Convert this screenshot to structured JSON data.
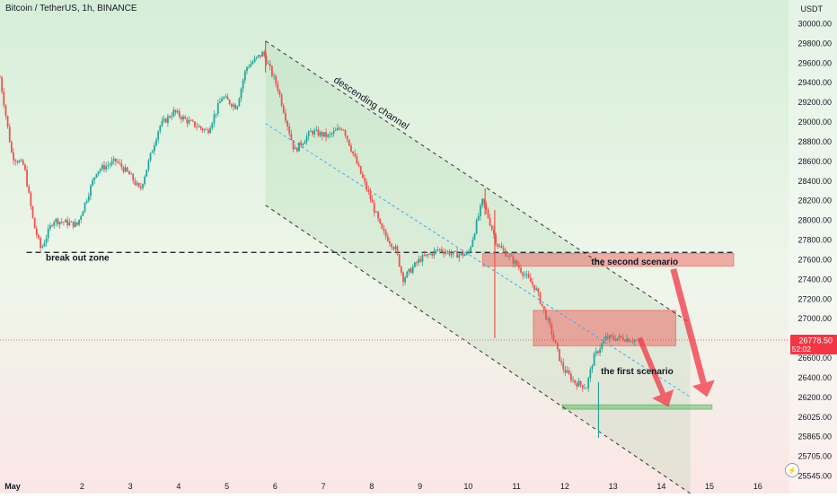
{
  "header": {
    "symbol": "Bitcoin / TetherUS, 1h, BINANCE",
    "unit": "USDT"
  },
  "chart_data": {
    "type": "candlestick",
    "y_axis": {
      "range": [
        25545,
        30050
      ],
      "ticks": [
        30000,
        29800,
        29600,
        29400,
        29200,
        29000,
        28800,
        28600,
        28400,
        28200,
        28000,
        27800,
        27600,
        27400,
        27200,
        27000,
        26800,
        26600,
        26400,
        26200,
        26025,
        25865,
        25705,
        25545
      ],
      "tick_labels": [
        "30000.00",
        "29800.00",
        "29600.00",
        "29400.00",
        "29200.00",
        "29000.00",
        "28800.00",
        "28600.00",
        "28400.00",
        "28200.00",
        "28000.00",
        "27800.00",
        "27600.00",
        "27400.00",
        "27200.00",
        "27000.00",
        "26800.00",
        "26600.00",
        "26400.00",
        "26200.00",
        "26025.00",
        "25865.00",
        "25705.00",
        "25545.00"
      ]
    },
    "x_axis": {
      "range": [
        0.3,
        16.45
      ],
      "ticks": [
        1,
        2,
        3,
        4,
        5,
        6,
        7,
        8,
        9,
        10,
        11,
        12,
        13,
        14,
        15,
        16
      ],
      "tick_labels": [
        "May",
        "2",
        "3",
        "4",
        "5",
        "6",
        "7",
        "8",
        "9",
        "10",
        "11",
        "12",
        "13",
        "14",
        "15",
        "16"
      ]
    },
    "last_price": {
      "value": 26778.5,
      "label": "26778.50",
      "countdown": "52:02"
    },
    "colors": {
      "up": "#26a69a",
      "down": "#ef5350",
      "accent": "#f23645",
      "zone": "#ef5350",
      "support": "#4caf50"
    },
    "anchors": [
      {
        "t": 0.3,
        "p": 29450
      },
      {
        "t": 0.55,
        "p": 28650
      },
      {
        "t": 0.8,
        "p": 28550
      },
      {
        "t": 1.0,
        "p": 27950
      },
      {
        "t": 1.15,
        "p": 27700
      },
      {
        "t": 1.4,
        "p": 28000
      },
      {
        "t": 1.9,
        "p": 27950
      },
      {
        "t": 2.3,
        "p": 28500
      },
      {
        "t": 2.7,
        "p": 28600
      },
      {
        "t": 3.0,
        "p": 28450
      },
      {
        "t": 3.2,
        "p": 28300
      },
      {
        "t": 3.6,
        "p": 28950
      },
      {
        "t": 3.9,
        "p": 29100
      },
      {
        "t": 4.2,
        "p": 29000
      },
      {
        "t": 4.6,
        "p": 28900
      },
      {
        "t": 4.9,
        "p": 29250
      },
      {
        "t": 5.2,
        "p": 29150
      },
      {
        "t": 5.4,
        "p": 29550
      },
      {
        "t": 5.75,
        "p": 29700
      },
      {
        "t": 6.05,
        "p": 29350
      },
      {
        "t": 6.4,
        "p": 28700
      },
      {
        "t": 6.75,
        "p": 28900
      },
      {
        "t": 7.1,
        "p": 28850
      },
      {
        "t": 7.4,
        "p": 28950
      },
      {
        "t": 7.75,
        "p": 28500
      },
      {
        "t": 7.95,
        "p": 28250
      },
      {
        "t": 8.2,
        "p": 27900
      },
      {
        "t": 8.5,
        "p": 27700
      },
      {
        "t": 8.65,
        "p": 27400
      },
      {
        "t": 9.0,
        "p": 27600
      },
      {
        "t": 9.4,
        "p": 27700
      },
      {
        "t": 9.7,
        "p": 27650
      },
      {
        "t": 10.0,
        "p": 27650
      },
      {
        "t": 10.3,
        "p": 28200
      },
      {
        "t": 10.6,
        "p": 27750
      },
      {
        "t": 11.0,
        "p": 27550
      },
      {
        "t": 11.4,
        "p": 27300
      },
      {
        "t": 11.7,
        "p": 26900
      },
      {
        "t": 11.95,
        "p": 26500
      },
      {
        "t": 12.2,
        "p": 26350
      },
      {
        "t": 12.45,
        "p": 26300
      },
      {
        "t": 12.6,
        "p": 26600
      },
      {
        "t": 12.85,
        "p": 26800
      },
      {
        "t": 13.2,
        "p": 26800
      },
      {
        "t": 13.45,
        "p": 26780
      }
    ],
    "spikes": [
      {
        "t": 5.8,
        "high": 29820,
        "low": 29500
      },
      {
        "t": 10.35,
        "high": 28320,
        "low": 28050
      },
      {
        "t": 10.55,
        "high": 28100,
        "low": 26800
      },
      {
        "t": 12.7,
        "high": 26350,
        "low": 25850
      }
    ],
    "channel": {
      "upper": [
        {
          "t": 5.8,
          "p": 29820
        },
        {
          "t": 14.6,
          "p": 26950
        }
      ],
      "lower": [
        {
          "t": 5.8,
          "p": 28150
        },
        {
          "t": 14.6,
          "p": 25400
        }
      ],
      "mid": [
        {
          "t": 5.8,
          "p": 28980
        },
        {
          "t": 14.6,
          "p": 26200
        }
      ],
      "label": "descending channel"
    },
    "breakout": {
      "price": 27670,
      "t_start": 0.85,
      "t_end": 15.5,
      "label": "break out zone"
    },
    "zones": [
      {
        "name": "the second scenario",
        "t_start": 10.3,
        "t_end": 15.5,
        "p_low": 27530,
        "p_high": 27660
      },
      {
        "name": "upper-zone",
        "t_start": 11.35,
        "t_end": 14.3,
        "p_low": 26720,
        "p_high": 27080
      },
      {
        "name": "support-zone",
        "t_start": 11.95,
        "t_end": 15.05,
        "p_low": 26090,
        "p_high": 26130
      }
    ],
    "annotations": [
      {
        "text": "the first scenario",
        "t": 12.8,
        "p": 26470
      },
      {
        "text": "the second scenario",
        "t": 12.2,
        "p": 27580
      }
    ],
    "arrows": [
      {
        "from": {
          "t": 13.55,
          "p": 26800
        },
        "to": {
          "t": 14.15,
          "p": 26110
        }
      },
      {
        "from": {
          "t": 14.25,
          "p": 27500
        },
        "to": {
          "t": 14.95,
          "p": 26200
        }
      }
    ]
  }
}
